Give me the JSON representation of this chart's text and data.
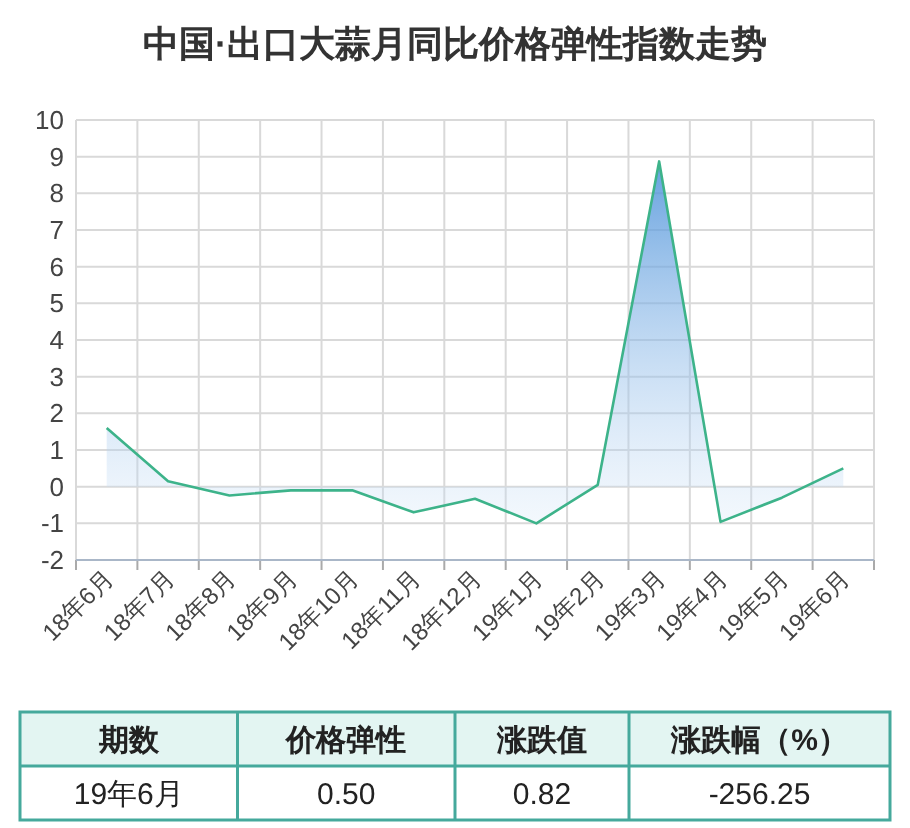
{
  "chart_data": {
    "type": "area",
    "title": "中国·出口大蒜月同比价格弹性指数走势",
    "categories": [
      "18年6月",
      "18年7月",
      "18年8月",
      "18年9月",
      "18年10月",
      "18年11月",
      "18年12月",
      "19年1月",
      "19年2月",
      "19年3月",
      "19年4月",
      "19年5月",
      "19年6月"
    ],
    "series": [
      {
        "color": "#3db38a",
        "values": [
          1.6,
          0.15,
          -0.24,
          -0.1,
          -0.1,
          -0.7,
          -0.33,
          -1.0,
          0.05,
          8.87,
          -0.96,
          -0.3,
          0.5
        ]
      }
    ],
    "ylim": [
      -2,
      10
    ],
    "yticks": [
      -2,
      -1,
      0,
      1,
      2,
      3,
      4,
      5,
      6,
      7,
      8,
      9,
      10
    ],
    "grid": true,
    "annotations": [
      "期数",
      "价格弹性",
      "涨跌值",
      "涨跌幅（%）",
      "19年6月",
      "0.50",
      "0.82",
      "-256.25"
    ]
  }
}
